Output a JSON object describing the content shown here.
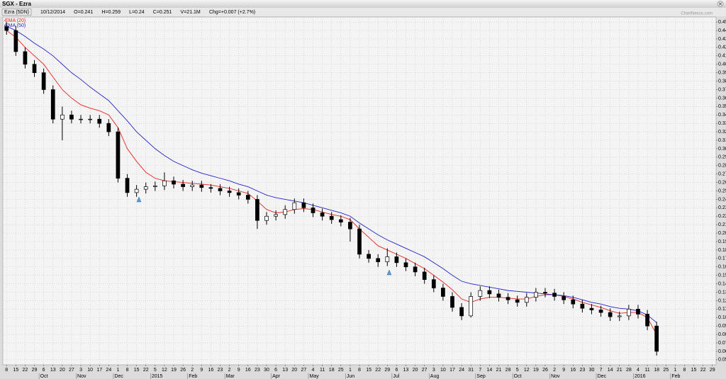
{
  "chart_data": {
    "type": "candlestick",
    "title": "SGX - Ezra",
    "info": [
      "Ezra (5DN)",
      "10/12/2014",
      "O=0.241",
      "H=0.259",
      "L=0.24",
      "C=0.251",
      "V=21.1M",
      "Chg=+0.007 (+2.7%)"
    ],
    "watermark": "ChartNexus.com",
    "open": [
      0.445,
      0.44,
      0.415,
      0.4,
      0.39,
      0.37,
      0.335,
      0.34,
      0.335,
      0.335,
      0.335,
      0.33,
      0.32,
      0.265,
      0.248,
      0.252,
      0.255,
      0.256,
      0.262,
      0.258,
      0.255,
      0.257,
      0.254,
      0.253,
      0.25,
      0.248,
      0.245,
      0.24,
      0.215,
      0.22,
      0.222,
      0.228,
      0.236,
      0.23,
      0.224,
      0.22,
      0.216,
      0.213,
      0.205,
      0.175,
      0.17,
      0.166,
      0.172,
      0.165,
      0.16,
      0.154,
      0.145,
      0.135,
      0.125,
      0.112,
      0.102,
      0.125,
      0.132,
      0.128,
      0.124,
      0.121,
      0.118,
      0.124,
      0.13,
      0.129,
      0.125,
      0.121,
      0.116,
      0.111,
      0.109,
      0.106,
      0.101,
      0.102,
      0.11,
      0.104,
      0.09
    ],
    "high": [
      0.45,
      0.445,
      0.42,
      0.405,
      0.395,
      0.375,
      0.35,
      0.345,
      0.34,
      0.34,
      0.34,
      0.335,
      0.325,
      0.27,
      0.257,
      0.26,
      0.261,
      0.272,
      0.267,
      0.263,
      0.262,
      0.262,
      0.258,
      0.258,
      0.255,
      0.253,
      0.25,
      0.245,
      0.225,
      0.227,
      0.233,
      0.241,
      0.241,
      0.235,
      0.229,
      0.225,
      0.221,
      0.218,
      0.21,
      0.18,
      0.175,
      0.182,
      0.177,
      0.17,
      0.165,
      0.159,
      0.15,
      0.14,
      0.13,
      0.117,
      0.13,
      0.137,
      0.137,
      0.133,
      0.129,
      0.126,
      0.129,
      0.135,
      0.135,
      0.134,
      0.13,
      0.126,
      0.121,
      0.116,
      0.114,
      0.111,
      0.107,
      0.115,
      0.115,
      0.109,
      0.095
    ],
    "low": [
      0.435,
      0.41,
      0.395,
      0.385,
      0.365,
      0.33,
      0.31,
      0.33,
      0.33,
      0.33,
      0.325,
      0.315,
      0.26,
      0.243,
      0.243,
      0.247,
      0.25,
      0.251,
      0.253,
      0.25,
      0.25,
      0.249,
      0.248,
      0.245,
      0.243,
      0.24,
      0.235,
      0.205,
      0.21,
      0.215,
      0.217,
      0.223,
      0.225,
      0.219,
      0.215,
      0.211,
      0.208,
      0.19,
      0.17,
      0.165,
      0.16,
      0.161,
      0.16,
      0.155,
      0.149,
      0.14,
      0.13,
      0.12,
      0.107,
      0.097,
      0.1,
      0.12,
      0.123,
      0.119,
      0.116,
      0.113,
      0.113,
      0.119,
      0.124,
      0.12,
      0.116,
      0.111,
      0.106,
      0.104,
      0.101,
      0.096,
      0.096,
      0.097,
      0.099,
      0.085,
      0.055
    ],
    "close": [
      0.44,
      0.415,
      0.4,
      0.39,
      0.37,
      0.335,
      0.34,
      0.335,
      0.335,
      0.335,
      0.33,
      0.32,
      0.265,
      0.248,
      0.252,
      0.255,
      0.256,
      0.262,
      0.258,
      0.255,
      0.257,
      0.254,
      0.253,
      0.25,
      0.248,
      0.245,
      0.24,
      0.215,
      0.22,
      0.222,
      0.228,
      0.236,
      0.23,
      0.224,
      0.22,
      0.216,
      0.213,
      0.205,
      0.175,
      0.17,
      0.166,
      0.172,
      0.165,
      0.16,
      0.154,
      0.145,
      0.135,
      0.125,
      0.112,
      0.102,
      0.125,
      0.132,
      0.128,
      0.124,
      0.121,
      0.118,
      0.124,
      0.13,
      0.129,
      0.125,
      0.121,
      0.116,
      0.111,
      0.109,
      0.106,
      0.101,
      0.102,
      0.11,
      0.104,
      0.09,
      0.06
    ],
    "up_color": "#ffffff",
    "down_color": "#000000",
    "series": [
      {
        "name": "EMA (20)",
        "color": "#e8211d",
        "values": [
          0.44,
          0.432,
          0.42,
          0.41,
          0.4,
          0.385,
          0.37,
          0.36,
          0.352,
          0.348,
          0.345,
          0.34,
          0.325,
          0.3,
          0.285,
          0.272,
          0.265,
          0.262,
          0.261,
          0.26,
          0.259,
          0.258,
          0.257,
          0.255,
          0.253,
          0.25,
          0.247,
          0.238,
          0.228,
          0.224,
          0.225,
          0.228,
          0.229,
          0.228,
          0.225,
          0.222,
          0.22,
          0.216,
          0.205,
          0.195,
          0.185,
          0.18,
          0.175,
          0.17,
          0.164,
          0.158,
          0.15,
          0.142,
          0.133,
          0.122,
          0.118,
          0.122,
          0.124,
          0.124,
          0.123,
          0.122,
          0.122,
          0.125,
          0.127,
          0.127,
          0.125,
          0.122,
          0.118,
          0.115,
          0.112,
          0.108,
          0.105,
          0.106,
          0.106,
          0.1,
          0.08
        ]
      },
      {
        "name": "EMA (50)",
        "color": "#2323c8",
        "values": [
          0.445,
          0.44,
          0.433,
          0.425,
          0.418,
          0.41,
          0.4,
          0.39,
          0.382,
          0.373,
          0.365,
          0.357,
          0.345,
          0.333,
          0.32,
          0.31,
          0.3,
          0.292,
          0.285,
          0.28,
          0.275,
          0.271,
          0.268,
          0.265,
          0.262,
          0.258,
          0.255,
          0.25,
          0.245,
          0.242,
          0.24,
          0.238,
          0.236,
          0.233,
          0.23,
          0.227,
          0.224,
          0.22,
          0.212,
          0.205,
          0.198,
          0.192,
          0.187,
          0.182,
          0.177,
          0.172,
          0.165,
          0.158,
          0.15,
          0.143,
          0.14,
          0.138,
          0.136,
          0.134,
          0.132,
          0.131,
          0.13,
          0.129,
          0.128,
          0.127,
          0.126,
          0.124,
          0.121,
          0.118,
          0.116,
          0.113,
          0.111,
          0.11,
          0.108,
          0.103,
          0.094
        ]
      }
    ],
    "xlim": [
      -0.4,
      76.4
    ],
    "xticks": [
      {
        "value": 0,
        "label": "8"
      },
      {
        "value": 1,
        "label": "15"
      },
      {
        "value": 2,
        "label": "22"
      },
      {
        "value": 3,
        "label": "29"
      },
      {
        "value": 4,
        "label": "6"
      },
      {
        "value": 5,
        "label": "13"
      },
      {
        "value": 6,
        "label": "20"
      },
      {
        "value": 7,
        "label": "27"
      },
      {
        "value": 8,
        "label": "3"
      },
      {
        "value": 9,
        "label": "10"
      },
      {
        "value": 10,
        "label": "17"
      },
      {
        "value": 11,
        "label": "24"
      },
      {
        "value": 12,
        "label": "1"
      },
      {
        "value": 13,
        "label": "8"
      },
      {
        "value": 14,
        "label": "15"
      },
      {
        "value": 15,
        "label": "22"
      },
      {
        "value": 16,
        "label": "5"
      },
      {
        "value": 17,
        "label": "12"
      },
      {
        "value": 18,
        "label": "19"
      },
      {
        "value": 19,
        "label": "26"
      },
      {
        "value": 20,
        "label": "2"
      },
      {
        "value": 21,
        "label": "9"
      },
      {
        "value": 22,
        "label": "16"
      },
      {
        "value": 23,
        "label": "23"
      },
      {
        "value": 24,
        "label": "2"
      },
      {
        "value": 25,
        "label": "9"
      },
      {
        "value": 26,
        "label": "16"
      },
      {
        "value": 27,
        "label": "23"
      },
      {
        "value": 28,
        "label": "30"
      },
      {
        "value": 29,
        "label": "6"
      },
      {
        "value": 30,
        "label": "13"
      },
      {
        "value": 31,
        "label": "20"
      },
      {
        "value": 32,
        "label": "27"
      },
      {
        "value": 33,
        "label": "4"
      },
      {
        "value": 34,
        "label": "11"
      },
      {
        "value": 35,
        "label": "18"
      },
      {
        "value": 36,
        "label": "25"
      },
      {
        "value": 37,
        "label": "1"
      },
      {
        "value": 38,
        "label": "8"
      },
      {
        "value": 39,
        "label": "15"
      },
      {
        "value": 40,
        "label": "22"
      },
      {
        "value": 41,
        "label": "29"
      },
      {
        "value": 42,
        "label": "6"
      },
      {
        "value": 43,
        "label": "13"
      },
      {
        "value": 44,
        "label": "20"
      },
      {
        "value": 45,
        "label": "27"
      },
      {
        "value": 46,
        "label": "3"
      },
      {
        "value": 47,
        "label": "10"
      },
      {
        "value": 48,
        "label": "17"
      },
      {
        "value": 49,
        "label": "24"
      },
      {
        "value": 50,
        "label": "31"
      },
      {
        "value": 51,
        "label": "7"
      },
      {
        "value": 52,
        "label": "14"
      },
      {
        "value": 53,
        "label": "21"
      },
      {
        "value": 54,
        "label": "28"
      },
      {
        "value": 55,
        "label": "5"
      },
      {
        "value": 56,
        "label": "12"
      },
      {
        "value": 57,
        "label": "19"
      },
      {
        "value": 58,
        "label": "26"
      },
      {
        "value": 59,
        "label": "2"
      },
      {
        "value": 60,
        "label": "9"
      },
      {
        "value": 61,
        "label": "16"
      },
      {
        "value": 62,
        "label": "23"
      },
      {
        "value": 63,
        "label": "30"
      },
      {
        "value": 64,
        "label": "7"
      },
      {
        "value": 65,
        "label": "14"
      },
      {
        "value": 66,
        "label": "21"
      },
      {
        "value": 67,
        "label": "28"
      },
      {
        "value": 68,
        "label": "4"
      },
      {
        "value": 69,
        "label": "11"
      },
      {
        "value": 70,
        "label": "18"
      },
      {
        "value": 71,
        "label": "25"
      },
      {
        "value": 72,
        "label": "1"
      },
      {
        "value": 73,
        "label": "8"
      },
      {
        "value": 74,
        "label": "15"
      },
      {
        "value": 75,
        "label": "22"
      },
      {
        "value": 76,
        "label": "29"
      }
    ],
    "month_ticks": [
      {
        "value": 4,
        "label": "Oct"
      },
      {
        "value": 8,
        "label": "Nov"
      },
      {
        "value": 12,
        "label": "Dec"
      },
      {
        "value": 16,
        "label": "2015"
      },
      {
        "value": 20,
        "label": "Feb"
      },
      {
        "value": 24,
        "label": "Mar"
      },
      {
        "value": 29,
        "label": "Apr"
      },
      {
        "value": 33,
        "label": "May"
      },
      {
        "value": 37,
        "label": "Jun"
      },
      {
        "value": 42,
        "label": "Jul"
      },
      {
        "value": 46,
        "label": "Aug"
      },
      {
        "value": 51,
        "label": "Sep"
      },
      {
        "value": 55,
        "label": "Oct"
      },
      {
        "value": 59,
        "label": "Nov"
      },
      {
        "value": 64,
        "label": "Dec"
      },
      {
        "value": 68,
        "label": "2016"
      },
      {
        "value": 72,
        "label": "Feb"
      }
    ],
    "ylim": [
      0.044,
      0.456
    ],
    "yticks": [
      0.05,
      0.06,
      0.07,
      0.08,
      0.09,
      {
        "value": 0.1,
        "label": "0.10"
      },
      0.11,
      0.12,
      0.13,
      0.14,
      0.15,
      0.16,
      0.17,
      0.18,
      0.19,
      {
        "value": 0.2,
        "label": "0.20"
      },
      0.21,
      0.22,
      0.23,
      0.24,
      0.25,
      0.26,
      0.27,
      0.28,
      0.29,
      {
        "value": 0.3,
        "label": "0.30"
      },
      0.31,
      0.32,
      0.33,
      0.34,
      0.35,
      0.36,
      0.37,
      0.38,
      0.39,
      {
        "value": 0.4,
        "label": "0.40"
      },
      0.41,
      0.42,
      0.43,
      0.44,
      0.45
    ],
    "grid": true
  }
}
